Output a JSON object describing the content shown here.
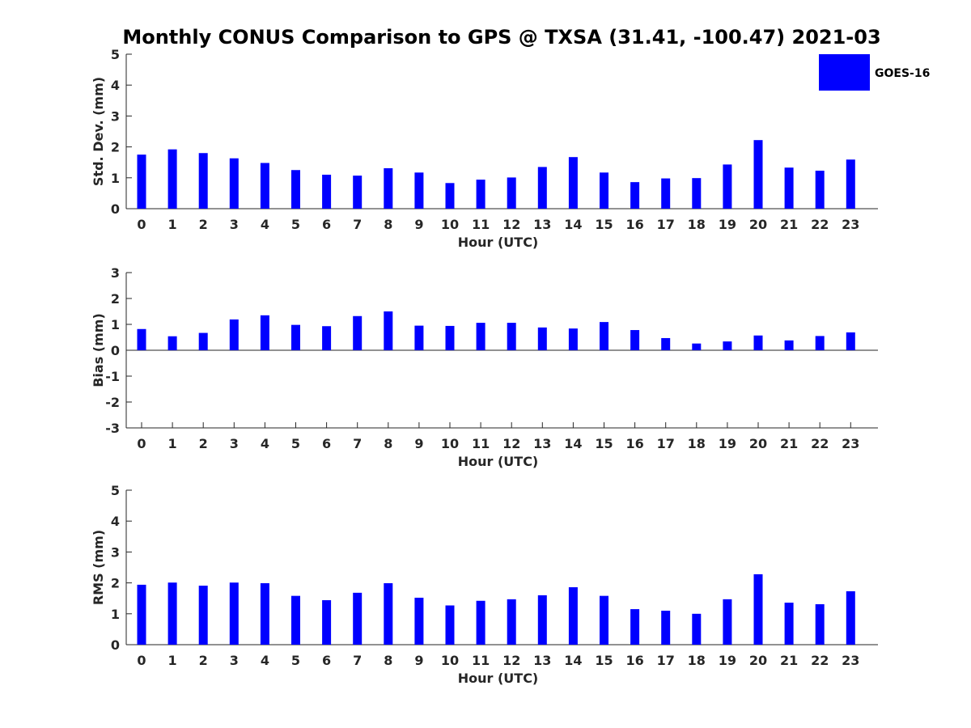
{
  "title": "Monthly CONUS Comparison to GPS @ TXSA (31.41, -100.47) 2021-03",
  "legend": {
    "label": "GOES-16",
    "color": "#0000FF",
    "placement": "top-right"
  },
  "chart_data": [
    {
      "type": "bar",
      "xlabel": "Hour (UTC)",
      "ylabel": "Std. Dev. (mm)",
      "ylim": [
        0,
        5
      ],
      "yticks": [
        0,
        1,
        2,
        3,
        4,
        5
      ],
      "categories": [
        "0",
        "1",
        "2",
        "3",
        "4",
        "5",
        "6",
        "7",
        "8",
        "9",
        "10",
        "11",
        "12",
        "13",
        "14",
        "15",
        "16",
        "17",
        "18",
        "19",
        "20",
        "21",
        "22",
        "23"
      ],
      "series": [
        {
          "name": "GOES-16",
          "color": "#0000FF",
          "values": [
            1.75,
            1.92,
            1.8,
            1.63,
            1.48,
            1.25,
            1.1,
            1.07,
            1.31,
            1.17,
            0.83,
            0.94,
            1.01,
            1.35,
            1.67,
            1.17,
            0.86,
            0.98,
            0.99,
            1.43,
            2.22,
            1.33,
            1.23,
            1.59
          ]
        }
      ]
    },
    {
      "type": "bar",
      "xlabel": "Hour (UTC)",
      "ylabel": "Bias (mm)",
      "ylim": [
        -3,
        3
      ],
      "yticks": [
        -3,
        -2,
        -1,
        0,
        1,
        2,
        3
      ],
      "categories": [
        "0",
        "1",
        "2",
        "3",
        "4",
        "5",
        "6",
        "7",
        "8",
        "9",
        "10",
        "11",
        "12",
        "13",
        "14",
        "15",
        "16",
        "17",
        "18",
        "19",
        "20",
        "21",
        "22",
        "23"
      ],
      "series": [
        {
          "name": "GOES-16",
          "color": "#0000FF",
          "values": [
            0.82,
            0.54,
            0.67,
            1.19,
            1.35,
            0.98,
            0.93,
            1.32,
            1.5,
            0.95,
            0.94,
            1.06,
            1.06,
            0.88,
            0.84,
            1.09,
            0.78,
            0.47,
            0.26,
            0.34,
            0.57,
            0.38,
            0.55,
            0.69
          ]
        }
      ]
    },
    {
      "type": "bar",
      "xlabel": "Hour (UTC)",
      "ylabel": "RMS (mm)",
      "ylim": [
        0,
        5
      ],
      "yticks": [
        0,
        1,
        2,
        3,
        4,
        5
      ],
      "categories": [
        "0",
        "1",
        "2",
        "3",
        "4",
        "5",
        "6",
        "7",
        "8",
        "9",
        "10",
        "11",
        "12",
        "13",
        "14",
        "15",
        "16",
        "17",
        "18",
        "19",
        "20",
        "21",
        "22",
        "23"
      ],
      "series": [
        {
          "name": "GOES-16",
          "color": "#0000FF",
          "values": [
            1.94,
            2.01,
            1.91,
            2.01,
            1.99,
            1.58,
            1.44,
            1.68,
            1.99,
            1.52,
            1.27,
            1.42,
            1.47,
            1.6,
            1.86,
            1.58,
            1.15,
            1.1,
            1.0,
            1.47,
            2.28,
            1.36,
            1.31,
            1.73
          ]
        }
      ]
    }
  ]
}
